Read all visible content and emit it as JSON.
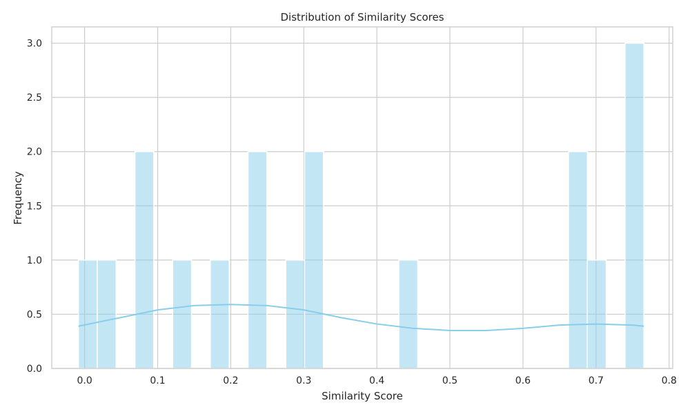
{
  "chart_data": {
    "type": "bar",
    "subtype": "histogram",
    "title": "Distribution of Similarity Scores",
    "xlabel": "Similarity Score",
    "ylabel": "Frequency",
    "xlim": [
      -0.045,
      0.805
    ],
    "ylim": [
      0.0,
      3.15
    ],
    "xticks": [
      0.0,
      0.1,
      0.2,
      0.3,
      0.4,
      0.5,
      0.6,
      0.7,
      0.8
    ],
    "xtick_labels": [
      "0.0",
      "0.1",
      "0.2",
      "0.3",
      "0.4",
      "0.5",
      "0.6",
      "0.7",
      "0.8"
    ],
    "yticks": [
      0.0,
      0.5,
      1.0,
      1.5,
      2.0,
      2.5,
      3.0
    ],
    "ytick_labels": [
      "0.0",
      "0.5",
      "1.0",
      "1.5",
      "2.0",
      "2.5",
      "3.0"
    ],
    "grid": true,
    "bar_color": "#87ceeb",
    "bar_opacity": 0.5,
    "kde_color": "#87ceeb",
    "bins": [
      {
        "x0": -0.0085,
        "x1": 0.0173,
        "count": 1
      },
      {
        "x0": 0.0173,
        "x1": 0.0431,
        "count": 1
      },
      {
        "x0": 0.0689,
        "x1": 0.0947,
        "count": 2
      },
      {
        "x0": 0.1205,
        "x1": 0.1463,
        "count": 1
      },
      {
        "x0": 0.1721,
        "x1": 0.1979,
        "count": 1
      },
      {
        "x0": 0.2237,
        "x1": 0.2495,
        "count": 2
      },
      {
        "x0": 0.2753,
        "x1": 0.3011,
        "count": 1
      },
      {
        "x0": 0.3011,
        "x1": 0.3269,
        "count": 2
      },
      {
        "x0": 0.4301,
        "x1": 0.4559,
        "count": 1
      },
      {
        "x0": 0.6623,
        "x1": 0.6881,
        "count": 2
      },
      {
        "x0": 0.6881,
        "x1": 0.7139,
        "count": 1
      },
      {
        "x0": 0.7397,
        "x1": 0.7655,
        "count": 3
      }
    ],
    "kde": {
      "x": [
        -0.0085,
        0.05,
        0.1,
        0.15,
        0.2,
        0.25,
        0.3,
        0.35,
        0.4,
        0.45,
        0.5,
        0.55,
        0.6,
        0.65,
        0.7,
        0.75,
        0.7655
      ],
      "y": [
        0.39,
        0.47,
        0.54,
        0.58,
        0.59,
        0.58,
        0.54,
        0.47,
        0.41,
        0.37,
        0.35,
        0.35,
        0.37,
        0.4,
        0.41,
        0.4,
        0.39
      ]
    }
  }
}
